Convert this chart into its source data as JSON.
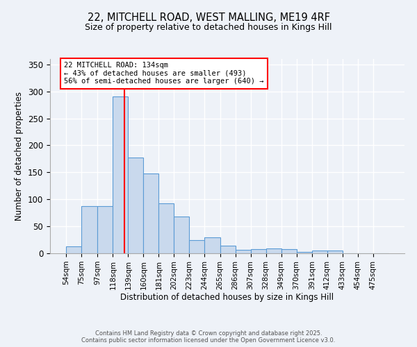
{
  "title_line1": "22, MITCHELL ROAD, WEST MALLING, ME19 4RF",
  "title_line2": "Size of property relative to detached houses in Kings Hill",
  "xlabel": "Distribution of detached houses by size in Kings Hill",
  "ylabel": "Number of detached properties",
  "bin_labels": [
    "54sqm",
    "75sqm",
    "97sqm",
    "118sqm",
    "139sqm",
    "160sqm",
    "181sqm",
    "202sqm",
    "223sqm",
    "244sqm",
    "265sqm",
    "286sqm",
    "307sqm",
    "328sqm",
    "349sqm",
    "370sqm",
    "391sqm",
    "412sqm",
    "433sqm",
    "454sqm",
    "475sqm"
  ],
  "bar_heights": [
    13,
    88,
    88,
    290,
    178,
    148,
    93,
    68,
    25,
    29,
    14,
    7,
    8,
    9,
    8,
    2,
    5,
    5,
    0,
    0,
    0
  ],
  "bar_color": "#c9d9ed",
  "bar_edge_color": "#5b9bd5",
  "red_line_x": 134,
  "bin_edges": [
    54,
    75,
    97,
    118,
    139,
    160,
    181,
    202,
    223,
    244,
    265,
    286,
    307,
    328,
    349,
    370,
    391,
    412,
    433,
    454,
    475
  ],
  "ylim": [
    0,
    360
  ],
  "yticks": [
    0,
    50,
    100,
    150,
    200,
    250,
    300,
    350
  ],
  "annotation_title": "22 MITCHELL ROAD: 134sqm",
  "annotation_line2": "← 43% of detached houses are smaller (493)",
  "annotation_line3": "56% of semi-detached houses are larger (640) →",
  "footer_line1": "Contains HM Land Registry data © Crown copyright and database right 2025.",
  "footer_line2": "Contains public sector information licensed under the Open Government Licence v3.0.",
  "background_color": "#eef2f8",
  "plot_bg_color": "#eef2f8",
  "grid_color": "#ffffff"
}
